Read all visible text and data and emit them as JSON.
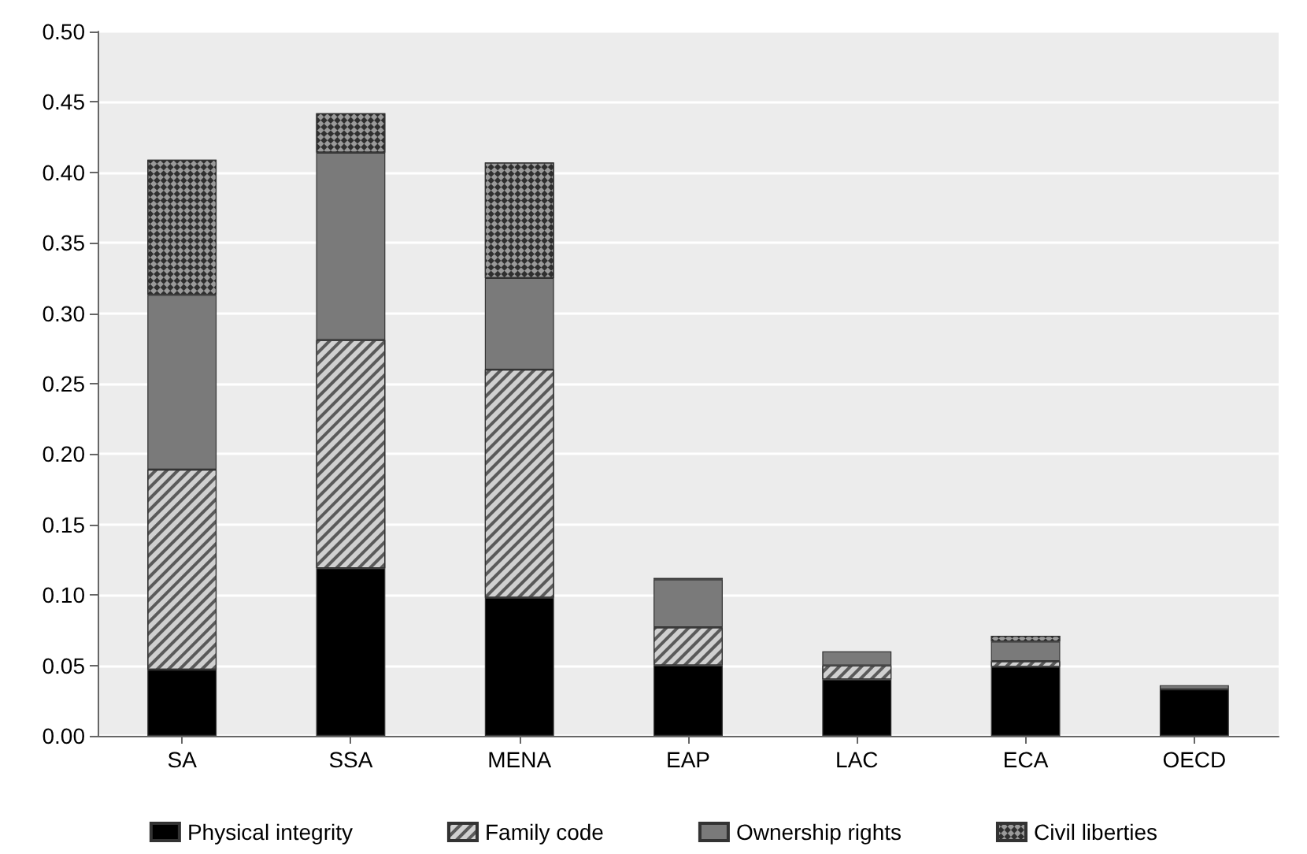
{
  "chart_data": {
    "type": "bar",
    "stacked": true,
    "categories": [
      "SA",
      "SSA",
      "MENA",
      "EAP",
      "LAC",
      "ECA",
      "OECD"
    ],
    "series": [
      {
        "name": "Physical integrity",
        "color": "#000000",
        "values": [
          0.047,
          0.119,
          0.098,
          0.05,
          0.04,
          0.049,
          0.033
        ]
      },
      {
        "name": "Family code",
        "color": "#d0d0d0",
        "values": [
          0.142,
          0.162,
          0.162,
          0.027,
          0.01,
          0.004,
          null
        ]
      },
      {
        "name": "Ownership rights",
        "color": "#7a7a7a",
        "values": [
          0.124,
          0.133,
          0.065,
          0.034,
          0.01,
          0.014,
          0.003
        ]
      },
      {
        "name": "Civil liberties",
        "color": "#9a9a9a",
        "values": [
          0.096,
          0.028,
          0.082,
          0.001,
          null,
          0.004,
          null
        ]
      }
    ],
    "ylim": [
      0,
      0.5
    ],
    "yticks": [
      {
        "value": 0,
        "label": "0.00"
      },
      0.05,
      {
        "value": 0.1,
        "label": "0.10"
      },
      0.15,
      {
        "value": 0.2,
        "label": "0.20"
      },
      0.25,
      {
        "value": 0.3,
        "label": "0.30"
      },
      0.35,
      {
        "value": 0.4,
        "label": "0.40"
      },
      0.45,
      {
        "value": 0.5,
        "label": "0.50"
      }
    ],
    "grid": "y",
    "legend": "bottom"
  }
}
